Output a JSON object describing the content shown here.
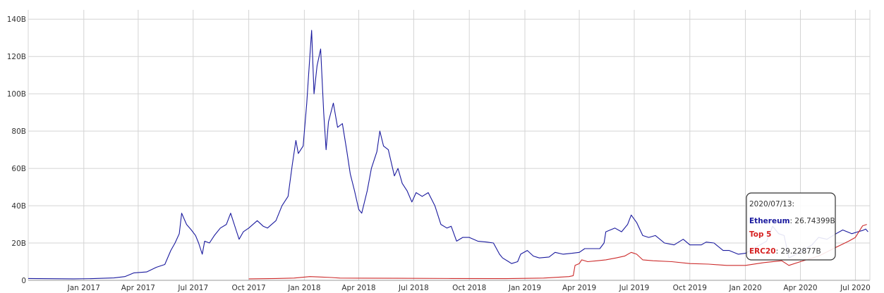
{
  "chart_data": {
    "type": "line",
    "title": "",
    "xlabel": "",
    "ylabel": "",
    "x_range": [
      "2016-10-01",
      "2020-07-25"
    ],
    "ylim": [
      0,
      145
    ],
    "y_ticks": [
      0,
      20,
      40,
      60,
      80,
      100,
      120,
      140
    ],
    "y_tick_labels": [
      "0",
      "20B",
      "40B",
      "60B",
      "80B",
      "100B",
      "120B",
      "140B"
    ],
    "x_ticks": [
      "2017-01-01",
      "2017-04-01",
      "2017-07-01",
      "2017-10-01",
      "2018-01-01",
      "2018-04-01",
      "2018-07-01",
      "2018-10-01",
      "2019-01-01",
      "2019-04-01",
      "2019-07-01",
      "2019-10-01",
      "2020-01-01",
      "2020-04-01",
      "2020-07-01"
    ],
    "x_tick_labels": [
      "Jan 2017",
      "Apr 2017",
      "Jul 2017",
      "Oct 2017",
      "Jan 2018",
      "Apr 2018",
      "Jul 2018",
      "Oct 2018",
      "Jan 2019",
      "Apr 2019",
      "Jul 2019",
      "Oct 2019",
      "Jan 2020",
      "Apr 2020",
      "Jul 2020"
    ],
    "grid": true,
    "series": [
      {
        "name": "Ethereum",
        "color": "#1a1a9e",
        "points": [
          [
            "2016-10-01",
            1.0
          ],
          [
            "2016-12-15",
            0.8
          ],
          [
            "2017-01-15",
            0.9
          ],
          [
            "2017-02-20",
            1.3
          ],
          [
            "2017-03-10",
            2.0
          ],
          [
            "2017-03-25",
            4.0
          ],
          [
            "2017-04-15",
            4.5
          ],
          [
            "2017-05-01",
            7.0
          ],
          [
            "2017-05-15",
            8.5
          ],
          [
            "2017-05-25",
            16.0
          ],
          [
            "2017-06-01",
            20.0
          ],
          [
            "2017-06-08",
            25.0
          ],
          [
            "2017-06-12",
            36.0
          ],
          [
            "2017-06-20",
            30.0
          ],
          [
            "2017-06-28",
            27.0
          ],
          [
            "2017-07-05",
            24.0
          ],
          [
            "2017-07-10",
            20.0
          ],
          [
            "2017-07-16",
            14.0
          ],
          [
            "2017-07-20",
            21.0
          ],
          [
            "2017-07-28",
            20.0
          ],
          [
            "2017-08-05",
            24.0
          ],
          [
            "2017-08-15",
            28.0
          ],
          [
            "2017-08-25",
            30.0
          ],
          [
            "2017-09-01",
            36.0
          ],
          [
            "2017-09-10",
            27.0
          ],
          [
            "2017-09-15",
            22.0
          ],
          [
            "2017-09-22",
            26.0
          ],
          [
            "2017-10-01",
            28.0
          ],
          [
            "2017-10-15",
            32.0
          ],
          [
            "2017-10-25",
            29.0
          ],
          [
            "2017-11-01",
            28.0
          ],
          [
            "2017-11-15",
            32.0
          ],
          [
            "2017-11-25",
            40.0
          ],
          [
            "2017-12-05",
            45.0
          ],
          [
            "2017-12-12",
            62.0
          ],
          [
            "2017-12-18",
            75.0
          ],
          [
            "2017-12-22",
            68.0
          ],
          [
            "2017-12-30",
            72.0
          ],
          [
            "2018-01-05",
            95.0
          ],
          [
            "2018-01-08",
            110.0
          ],
          [
            "2018-01-13",
            134.0
          ],
          [
            "2018-01-17",
            100.0
          ],
          [
            "2018-01-22",
            115.0
          ],
          [
            "2018-01-28",
            124.0
          ],
          [
            "2018-02-02",
            90.0
          ],
          [
            "2018-02-06",
            70.0
          ],
          [
            "2018-02-10",
            85.0
          ],
          [
            "2018-02-18",
            95.0
          ],
          [
            "2018-02-25",
            82.0
          ],
          [
            "2018-03-05",
            84.0
          ],
          [
            "2018-03-12",
            70.0
          ],
          [
            "2018-03-18",
            57.0
          ],
          [
            "2018-03-25",
            48.0
          ],
          [
            "2018-04-01",
            38.0
          ],
          [
            "2018-04-06",
            36.0
          ],
          [
            "2018-04-15",
            48.0
          ],
          [
            "2018-04-22",
            60.0
          ],
          [
            "2018-05-01",
            69.0
          ],
          [
            "2018-05-06",
            80.0
          ],
          [
            "2018-05-12",
            72.0
          ],
          [
            "2018-05-20",
            70.0
          ],
          [
            "2018-05-30",
            56.0
          ],
          [
            "2018-06-05",
            60.0
          ],
          [
            "2018-06-12",
            52.0
          ],
          [
            "2018-06-20",
            48.0
          ],
          [
            "2018-06-28",
            42.0
          ],
          [
            "2018-07-05",
            47.0
          ],
          [
            "2018-07-15",
            45.0
          ],
          [
            "2018-07-25",
            47.0
          ],
          [
            "2018-08-05",
            40.0
          ],
          [
            "2018-08-15",
            30.0
          ],
          [
            "2018-08-25",
            28.0
          ],
          [
            "2018-09-01",
            29.0
          ],
          [
            "2018-09-10",
            21.0
          ],
          [
            "2018-09-20",
            23.0
          ],
          [
            "2018-10-01",
            23.0
          ],
          [
            "2018-10-15",
            21.0
          ],
          [
            "2018-10-30",
            20.5
          ],
          [
            "2018-11-10",
            20.0
          ],
          [
            "2018-11-20",
            14.0
          ],
          [
            "2018-11-25",
            12.0
          ],
          [
            "2018-12-05",
            10.0
          ],
          [
            "2018-12-10",
            9.0
          ],
          [
            "2018-12-20",
            10.0
          ],
          [
            "2018-12-25",
            14.0
          ],
          [
            "2019-01-05",
            16.0
          ],
          [
            "2019-01-15",
            13.0
          ],
          [
            "2019-01-25",
            12.0
          ],
          [
            "2019-02-10",
            12.5
          ],
          [
            "2019-02-20",
            15.0
          ],
          [
            "2019-03-05",
            14.0
          ],
          [
            "2019-03-20",
            14.5
          ],
          [
            "2019-04-01",
            15.0
          ],
          [
            "2019-04-10",
            17.0
          ],
          [
            "2019-04-25",
            17.0
          ],
          [
            "2019-05-05",
            17.0
          ],
          [
            "2019-05-12",
            20.0
          ],
          [
            "2019-05-15",
            26.0
          ],
          [
            "2019-05-30",
            28.0
          ],
          [
            "2019-06-10",
            26.0
          ],
          [
            "2019-06-20",
            30.0
          ],
          [
            "2019-06-26",
            35.0
          ],
          [
            "2019-07-05",
            31.0
          ],
          [
            "2019-07-15",
            24.0
          ],
          [
            "2019-07-25",
            23.0
          ],
          [
            "2019-08-05",
            24.0
          ],
          [
            "2019-08-20",
            20.0
          ],
          [
            "2019-09-05",
            19.0
          ],
          [
            "2019-09-20",
            22.0
          ],
          [
            "2019-10-01",
            19.0
          ],
          [
            "2019-10-20",
            19.0
          ],
          [
            "2019-10-28",
            20.5
          ],
          [
            "2019-11-10",
            20.0
          ],
          [
            "2019-11-25",
            16.0
          ],
          [
            "2019-12-05",
            16.0
          ],
          [
            "2019-12-20",
            14.0
          ],
          [
            "2020-01-01",
            14.5
          ],
          [
            "2020-01-20",
            18.0
          ],
          [
            "2020-02-05",
            21.0
          ],
          [
            "2020-02-15",
            29.0
          ],
          [
            "2020-02-25",
            25.0
          ],
          [
            "2020-03-05",
            24.0
          ],
          [
            "2020-03-13",
            12.0
          ],
          [
            "2020-03-25",
            14.0
          ],
          [
            "2020-04-05",
            16.0
          ],
          [
            "2020-04-20",
            19.0
          ],
          [
            "2020-05-01",
            23.0
          ],
          [
            "2020-05-15",
            22.0
          ],
          [
            "2020-05-30",
            25.0
          ],
          [
            "2020-06-10",
            27.0
          ],
          [
            "2020-06-25",
            25.0
          ],
          [
            "2020-07-05",
            26.0
          ],
          [
            "2020-07-13",
            26.74
          ],
          [
            "2020-07-18",
            27.5
          ],
          [
            "2020-07-22",
            26.0
          ]
        ]
      },
      {
        "name": "Top 5",
        "color": "#d62020",
        "points": []
      },
      {
        "name": "ERC20",
        "color": "#cc2a2a",
        "points": [
          [
            "2017-10-01",
            0.8
          ],
          [
            "2017-11-15",
            1.0
          ],
          [
            "2017-12-15",
            1.2
          ],
          [
            "2018-01-10",
            2.0
          ],
          [
            "2018-01-25",
            1.8
          ],
          [
            "2018-02-15",
            1.5
          ],
          [
            "2018-03-01",
            1.2
          ],
          [
            "2018-06-01",
            1.1
          ],
          [
            "2018-09-01",
            1.0
          ],
          [
            "2018-12-01",
            0.9
          ],
          [
            "2019-02-01",
            1.2
          ],
          [
            "2019-03-15",
            2.0
          ],
          [
            "2019-03-22",
            2.5
          ],
          [
            "2019-03-25",
            8.0
          ],
          [
            "2019-04-01",
            9.0
          ],
          [
            "2019-04-05",
            11.0
          ],
          [
            "2019-04-15",
            10.0
          ],
          [
            "2019-05-01",
            10.5
          ],
          [
            "2019-05-15",
            11.0
          ],
          [
            "2019-06-01",
            12.0
          ],
          [
            "2019-06-15",
            13.0
          ],
          [
            "2019-06-26",
            15.0
          ],
          [
            "2019-07-05",
            14.0
          ],
          [
            "2019-07-15",
            11.0
          ],
          [
            "2019-08-01",
            10.5
          ],
          [
            "2019-09-01",
            10.0
          ],
          [
            "2019-10-01",
            9.0
          ],
          [
            "2019-11-01",
            8.7
          ],
          [
            "2019-12-01",
            8.0
          ],
          [
            "2020-01-01",
            8.0
          ],
          [
            "2020-02-01",
            9.5
          ],
          [
            "2020-03-01",
            10.5
          ],
          [
            "2020-03-13",
            8.0
          ],
          [
            "2020-04-01",
            10.0
          ],
          [
            "2020-05-01",
            13.0
          ],
          [
            "2020-06-01",
            18.0
          ],
          [
            "2020-06-20",
            21.0
          ],
          [
            "2020-07-01",
            23.0
          ],
          [
            "2020-07-13",
            29.23
          ],
          [
            "2020-07-20",
            30.0
          ]
        ]
      }
    ],
    "tooltip": {
      "date": "2020/07/13:",
      "rows": [
        {
          "name": "Ethereum",
          "value": "26.74399B",
          "color": "#1a1a9e"
        },
        {
          "name": "Top 5",
          "value": "",
          "color": "#d62020"
        },
        {
          "name": "ERC20",
          "value": "29.22877B",
          "color": "#d62020"
        }
      ]
    }
  }
}
